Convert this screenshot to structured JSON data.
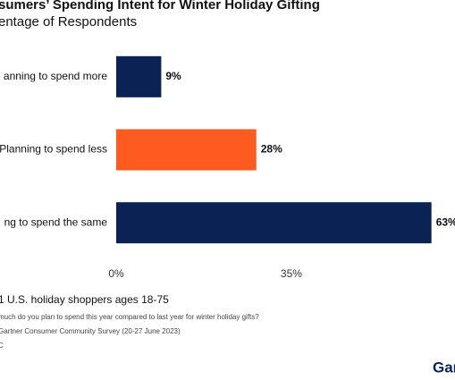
{
  "chart_data": {
    "type": "bar",
    "title": "sumers’ Spending Intent for Winter Holiday Gifting",
    "subtitle": "entage of Respondents",
    "categories": [
      "anning to spend more",
      "Planning to spend less",
      "ng to spend the same"
    ],
    "values": [
      9,
      28,
      63
    ],
    "value_labels": [
      "9%",
      "28%",
      "63%"
    ],
    "colors": [
      "#0b2254",
      "#ff5a1f",
      "#0b2254"
    ],
    "xlim": [
      0,
      67.7
    ],
    "xticks": [
      {
        "value": 0,
        "label": "0%"
      },
      {
        "value": 35,
        "label": "35%"
      }
    ],
    "base": "1 U.S. holiday shoppers ages 18-75",
    "notes": [
      "much do you plan to spend this year compared to last year for winter holiday gifts?",
      "Gartner Consumer Community Survey (20-27 June 2023)",
      "C"
    ]
  },
  "logo": "Gar"
}
